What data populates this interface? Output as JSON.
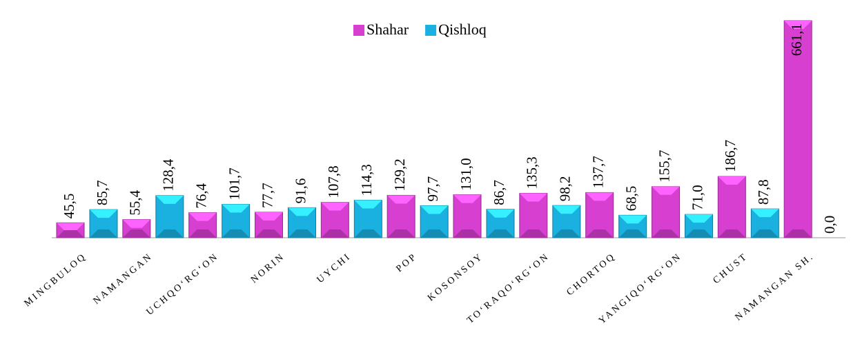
{
  "chart_data": {
    "type": "bar",
    "categories": [
      "MINGBULOQ",
      "NAMANGAN",
      "UCHQO‘RG‘ON",
      "NORIN",
      "UYCHI",
      "POP",
      "KOSONSOY",
      "TO‘RAQO‘RG‘ON",
      "CHORTOQ",
      "YANGIQO‘RG‘ON",
      "CHUST",
      "NAMANGAN SH."
    ],
    "series": [
      {
        "name": "Shahar",
        "color": "#d63fcf",
        "values": [
          45.5,
          55.4,
          76.4,
          77.7,
          107.8,
          129.2,
          131.0,
          135.3,
          137.7,
          155.7,
          186.7,
          661.1
        ],
        "value_labels": [
          "45,5",
          "55,4",
          "76,4",
          "77,7",
          "107,8",
          "129,2",
          "131,0",
          "135,3",
          "137,7",
          "155,7",
          "186,7",
          "661,1"
        ]
      },
      {
        "name": "Qishloq",
        "color": "#1ab0e0",
        "values": [
          85.7,
          128.4,
          101.7,
          91.6,
          114.3,
          97.7,
          86.7,
          98.2,
          68.5,
          71.0,
          87.8,
          0.0
        ],
        "value_labels": [
          "85,7",
          "128,4",
          "101,7",
          "91,6",
          "114,3",
          "97,7",
          "86,7",
          "98,2",
          "68,5",
          "71,0",
          "87,8",
          "0,0"
        ]
      }
    ]
  }
}
